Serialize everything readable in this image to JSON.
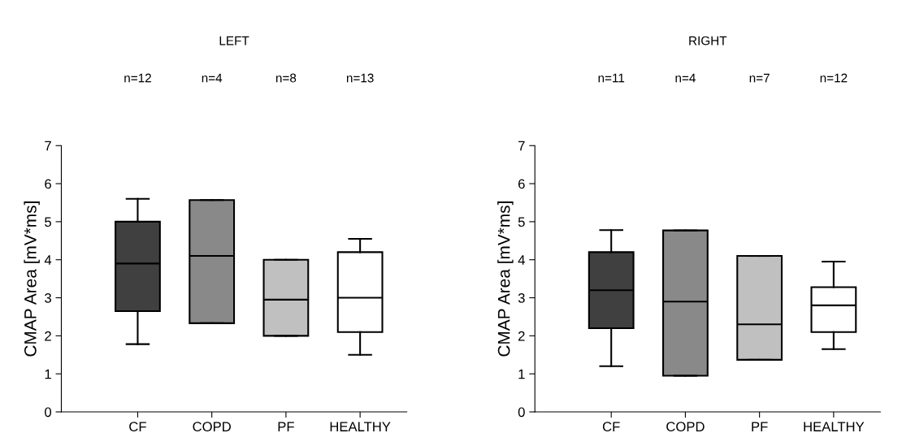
{
  "chart_data": [
    {
      "type": "box",
      "title": "LEFT",
      "ylabel": "CMAP Area [mV*ms]",
      "categories": [
        "CF",
        "COPD",
        "PF",
        "HEALTHY"
      ],
      "annotations": [
        "n=12",
        "n=4",
        "n=8",
        "n=13"
      ],
      "colors": [
        "#404040",
        "#898989",
        "#c0c0c0",
        "#ffffff"
      ],
      "ylim": [
        0,
        7
      ],
      "yticks": [
        0,
        1,
        2,
        3,
        4,
        5,
        6,
        7
      ],
      "grid": false,
      "legend": false,
      "boxes": [
        {
          "low": 1.78,
          "q1": 2.65,
          "median": 3.9,
          "q3": 5.0,
          "high": 5.6
        },
        {
          "low": 2.33,
          "q1": 2.33,
          "median": 4.1,
          "q3": 5.57,
          "high": 5.57
        },
        {
          "low": 2.0,
          "q1": 2.0,
          "median": 2.95,
          "q3": 4.0,
          "high": 4.0
        },
        {
          "low": 1.5,
          "q1": 2.1,
          "median": 3.0,
          "q3": 4.2,
          "high": 4.55
        }
      ]
    },
    {
      "type": "box",
      "title": "RIGHT",
      "ylabel": "CMAP Area [mV*ms]",
      "categories": [
        "CF",
        "COPD",
        "PF",
        "HEALTHY"
      ],
      "annotations": [
        "n=11",
        "n=4",
        "n=7",
        "n=12"
      ],
      "colors": [
        "#404040",
        "#898989",
        "#c0c0c0",
        "#ffffff"
      ],
      "ylim": [
        0,
        7
      ],
      "yticks": [
        0,
        1,
        2,
        3,
        4,
        5,
        6,
        7
      ],
      "grid": false,
      "legend": false,
      "boxes": [
        {
          "low": 1.2,
          "q1": 2.2,
          "median": 3.2,
          "q3": 4.2,
          "high": 4.78
        },
        {
          "low": 0.95,
          "q1": 0.95,
          "median": 2.9,
          "q3": 4.77,
          "high": 4.77
        },
        {
          "low": 1.37,
          "q1": 1.37,
          "median": 2.3,
          "q3": 4.1,
          "high": 4.1
        },
        {
          "low": 1.65,
          "q1": 2.1,
          "median": 2.8,
          "q3": 3.28,
          "high": 3.95
        }
      ]
    }
  ]
}
